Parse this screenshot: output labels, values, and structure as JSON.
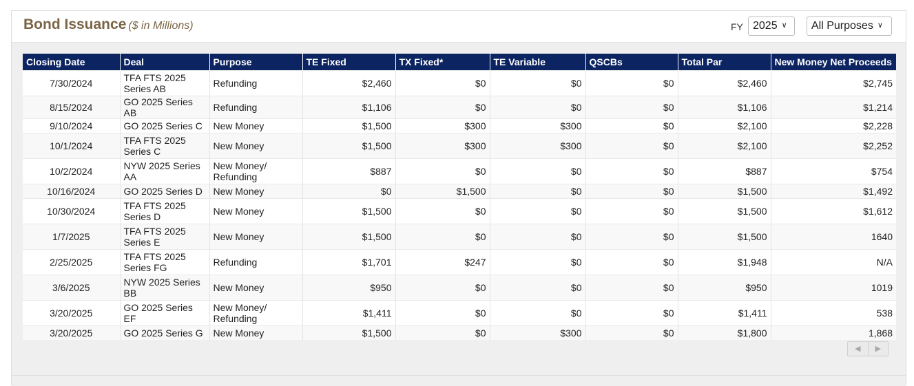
{
  "header": {
    "title": "Bond Issuance",
    "subtitle": "($ in Millions)",
    "fy_label": "FY",
    "fy_selected": "2025",
    "purpose_selected": "All Purposes"
  },
  "table": {
    "columns": [
      "Closing Date",
      "Deal",
      "Purpose",
      "TE Fixed",
      "TX Fixed*",
      "TE Variable",
      "QSCBs",
      "Total Par",
      "New Money Net Proceeds"
    ],
    "rows": [
      [
        "7/30/2024",
        "TFA FTS 2025 Series AB",
        "Refunding",
        "$2,460",
        "$0",
        "$0",
        "$0",
        "$2,460",
        "$2,745"
      ],
      [
        "8/15/2024",
        "GO 2025 Series AB",
        "Refunding",
        "$1,106",
        "$0",
        "$0",
        "$0",
        "$1,106",
        "$1,214"
      ],
      [
        "9/10/2024",
        "GO 2025 Series C",
        "New Money",
        "$1,500",
        "$300",
        "$300",
        "$0",
        "$2,100",
        "$2,228"
      ],
      [
        "10/1/2024",
        "TFA FTS 2025 Series C",
        "New Money",
        "$1,500",
        "$300",
        "$300",
        "$0",
        "$2,100",
        "$2,252"
      ],
      [
        "10/2/2024",
        "NYW 2025 Series AA",
        "New Money/ Refunding",
        "$887",
        "$0",
        "$0",
        "$0",
        "$887",
        "$754"
      ],
      [
        "10/16/2024",
        "GO 2025 Series D",
        "New Money",
        "$0",
        "$1,500",
        "$0",
        "$0",
        "$1,500",
        "$1,492"
      ],
      [
        "10/30/2024",
        "TFA FTS 2025 Series D",
        "New Money",
        "$1,500",
        "$0",
        "$0",
        "$0",
        "$1,500",
        "$1,612"
      ],
      [
        "1/7/2025",
        "TFA FTS 2025 Series E",
        "New Money",
        "$1,500",
        "$0",
        "$0",
        "$0",
        "$1,500",
        "1640"
      ],
      [
        "2/25/2025",
        "TFA FTS 2025 Series FG",
        "Refunding",
        "$1,701",
        "$247",
        "$0",
        "$0",
        "$1,948",
        "N/A"
      ],
      [
        "3/6/2025",
        "NYW 2025 Series BB",
        "New Money",
        "$950",
        "$0",
        "$0",
        "$0",
        "$950",
        "1019"
      ],
      [
        "3/20/2025",
        "GO 2025 Series EF",
        "New Money/ Refunding",
        "$1,411",
        "$0",
        "$0",
        "$0",
        "$1,411",
        "538"
      ],
      [
        "3/20/2025",
        "GO 2025 Series G",
        "New Money",
        "$1,500",
        "$0",
        "$300",
        "$0",
        "$1,800",
        "1,868"
      ]
    ]
  },
  "pager": {
    "prev_icon": "triangle-left-icon",
    "next_icon": "triangle-right-icon"
  }
}
